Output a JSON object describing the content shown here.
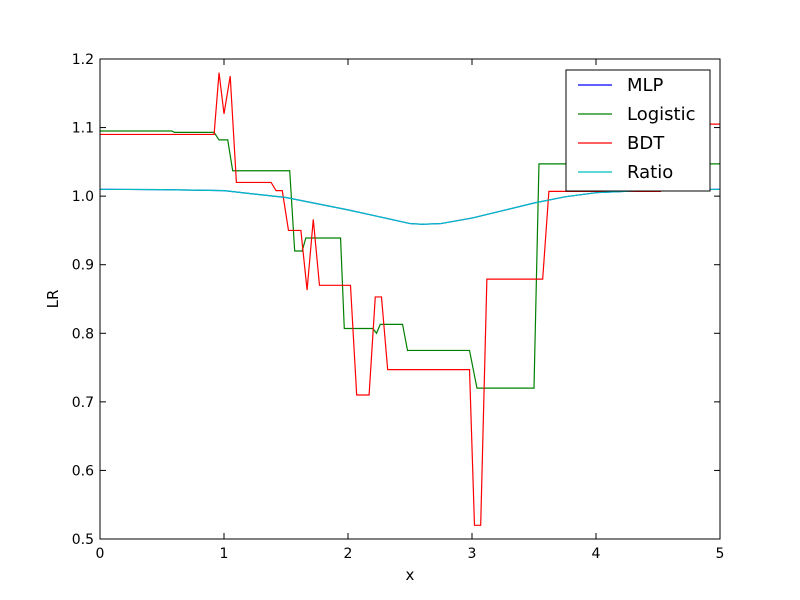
{
  "chart_data": {
    "type": "line",
    "title": "",
    "xlabel": "x",
    "ylabel": "LR",
    "xlim": [
      0,
      5
    ],
    "ylim": [
      0.5,
      1.2
    ],
    "xticks": [
      0,
      1,
      2,
      3,
      4,
      5
    ],
    "yticks": [
      0.5,
      0.6,
      0.7,
      0.8,
      0.9,
      1.0,
      1.1,
      1.2
    ],
    "xtick_labels": [
      "0",
      "1",
      "2",
      "3",
      "4",
      "5"
    ],
    "ytick_labels": [
      "0.5",
      "0.6",
      "0.7",
      "0.8",
      "0.9",
      "1.0",
      "1.1",
      "1.2"
    ],
    "grid": false,
    "legend_position": "top-right",
    "series": [
      {
        "name": "MLP",
        "color": "#0000ff",
        "x": [
          0,
          0.5,
          1.0,
          1.5,
          2.0,
          2.25,
          2.5,
          2.6,
          2.75,
          3.0,
          3.25,
          3.5,
          3.75,
          4.0,
          4.5,
          5.0
        ],
        "y": [
          1.01,
          1.0095,
          1.008,
          0.998,
          0.98,
          0.97,
          0.96,
          0.959,
          0.96,
          0.968,
          0.979,
          0.99,
          0.999,
          1.005,
          1.009,
          1.01
        ]
      },
      {
        "name": "Logistic",
        "color": "#008000",
        "x": [
          0,
          0.58,
          0.6,
          0.92,
          0.96,
          1.03,
          1.07,
          1.53,
          1.57,
          1.63,
          1.66,
          1.69,
          1.94,
          1.97,
          2.2,
          2.23,
          2.26,
          2.44,
          2.48,
          2.98,
          3.04,
          3.5,
          3.54,
          5.0
        ],
        "y": [
          1.095,
          1.095,
          1.093,
          1.093,
          1.082,
          1.082,
          1.037,
          1.037,
          0.92,
          0.92,
          0.939,
          0.939,
          0.939,
          0.807,
          0.807,
          0.8,
          0.813,
          0.813,
          0.775,
          0.775,
          0.72,
          0.72,
          1.047,
          1.047
        ]
      },
      {
        "name": "BDT",
        "color": "#ff0000",
        "x": [
          0,
          0.92,
          0.96,
          1.0,
          1.05,
          1.1,
          1.38,
          1.42,
          1.47,
          1.52,
          1.62,
          1.67,
          1.72,
          1.77,
          2.02,
          2.07,
          2.17,
          2.22,
          2.27,
          2.32,
          2.98,
          3.02,
          3.07,
          3.12,
          3.57,
          3.62,
          4.52,
          4.57,
          5.0
        ],
        "y": [
          1.09,
          1.09,
          1.18,
          1.12,
          1.175,
          1.02,
          1.02,
          1.008,
          1.008,
          0.95,
          0.95,
          0.863,
          0.966,
          0.87,
          0.87,
          0.71,
          0.71,
          0.853,
          0.853,
          0.747,
          0.747,
          0.52,
          0.52,
          0.879,
          0.879,
          1.007,
          1.007,
          1.105,
          1.105
        ]
      },
      {
        "name": "Ratio",
        "color": "#00bfbf",
        "x": [
          0,
          0.5,
          1.0,
          1.5,
          2.0,
          2.25,
          2.5,
          2.6,
          2.75,
          3.0,
          3.25,
          3.5,
          3.75,
          4.0,
          4.5,
          5.0
        ],
        "y": [
          1.01,
          1.0095,
          1.008,
          0.998,
          0.98,
          0.97,
          0.96,
          0.959,
          0.96,
          0.968,
          0.979,
          0.99,
          0.999,
          1.005,
          1.009,
          1.01
        ]
      }
    ]
  }
}
